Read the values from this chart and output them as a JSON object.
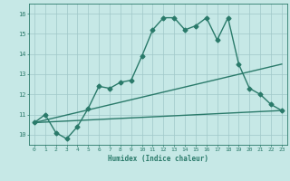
{
  "xlabel": "Humidex (Indice chaleur)",
  "ylabel": "",
  "xlim": [
    -0.5,
    23.5
  ],
  "ylim": [
    9.5,
    16.5
  ],
  "yticks": [
    10,
    11,
    12,
    13,
    14,
    15,
    16
  ],
  "xticks": [
    0,
    1,
    2,
    3,
    4,
    5,
    6,
    7,
    8,
    9,
    10,
    11,
    12,
    13,
    14,
    15,
    16,
    17,
    18,
    19,
    20,
    21,
    22,
    23
  ],
  "background_color": "#c6e8e6",
  "grid_color": "#a0c8c8",
  "line_color": "#2a7a6a",
  "lines": [
    {
      "x": [
        0,
        1,
        2,
        3,
        4,
        5,
        6,
        7,
        8,
        9,
        10,
        11,
        12,
        13,
        14,
        15,
        16,
        17,
        18,
        19,
        20,
        21,
        22,
        23
      ],
      "y": [
        10.6,
        11.0,
        10.1,
        9.8,
        10.4,
        11.3,
        12.4,
        12.3,
        12.6,
        12.7,
        13.9,
        15.2,
        15.8,
        15.8,
        15.2,
        15.4,
        15.8,
        14.7,
        15.8,
        13.5,
        12.3,
        12.0,
        11.5,
        11.2
      ],
      "marker": "D",
      "markersize": 2.5,
      "linewidth": 1.0,
      "has_marker": true
    },
    {
      "x": [
        0,
        23
      ],
      "y": [
        10.6,
        11.2
      ],
      "marker": null,
      "markersize": 0,
      "linewidth": 1.0,
      "has_marker": false
    },
    {
      "x": [
        0,
        23
      ],
      "y": [
        10.6,
        13.5
      ],
      "marker": null,
      "markersize": 0,
      "linewidth": 1.0,
      "has_marker": false
    }
  ]
}
